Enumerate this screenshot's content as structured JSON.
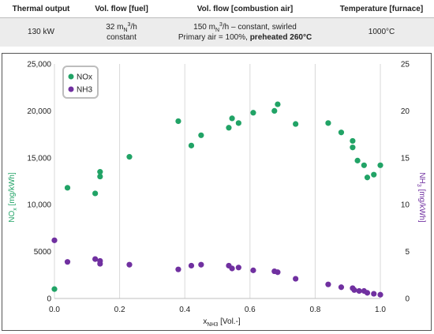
{
  "parameters": {
    "headers": [
      "Thermal output",
      "Vol. flow [fuel]",
      "Vol. flow [combustion air]",
      "Temperature [furnace]"
    ],
    "thermal_output": "130 kW",
    "fuel_flow_value": "32 m",
    "fuel_flow_unit_sub": "N",
    "fuel_flow_unit_sup": "3",
    "fuel_flow_unit_rest": "/h",
    "fuel_flow_note": "constant",
    "air_flow_value": "150 m",
    "air_flow_unit_sub": "N",
    "air_flow_unit_sup": "3",
    "air_flow_unit_rest": "/h – constant, swirled",
    "air_flow_note_prefix": "Primary air = 100%, ",
    "air_flow_note_bold": "preheated 260°C",
    "furnace_temperature": "1000°C"
  },
  "colors": {
    "nox": "#21a366",
    "nh3": "#7030a0",
    "grid": "#d9d9d9"
  },
  "chart_data": {
    "type": "scatter",
    "xlabel_main": "x",
    "xlabel_sub": "NH3",
    "xlabel_rest": " [Vol.-]",
    "ylabel_left_main": "NO",
    "ylabel_left_sub": "x",
    "ylabel_left_rest": " [mg/kWh]",
    "ylabel_right_main": "NH",
    "ylabel_right_sub": "3",
    "ylabel_right_rest": " [mg/kWh]",
    "xlim": [
      0,
      1
    ],
    "ylim_left": [
      0,
      25000
    ],
    "ylim_right": [
      0,
      25
    ],
    "x_ticks": [
      "0.0",
      "0.2",
      "0.4",
      "0.6",
      "0.8",
      "1.0"
    ],
    "x_tick_values": [
      0,
      0.2,
      0.4,
      0.6,
      0.8,
      1.0
    ],
    "y_left_ticks": [
      "0",
      "5000",
      "10,000",
      "15,000",
      "20,000",
      "25,000"
    ],
    "y_left_tick_values": [
      0,
      5000,
      10000,
      15000,
      20000,
      25000
    ],
    "y_right_ticks": [
      "0",
      "5",
      "10",
      "15",
      "20",
      "25"
    ],
    "y_right_tick_values": [
      0,
      5,
      10,
      15,
      20,
      25
    ],
    "grid": "vertical",
    "legend_placement": "top-left",
    "series": [
      {
        "name": "NOx",
        "axis": "left",
        "points": [
          [
            0.0,
            1000
          ],
          [
            0.04,
            11800
          ],
          [
            0.125,
            11200
          ],
          [
            0.14,
            13000
          ],
          [
            0.14,
            13500
          ],
          [
            0.23,
            15100
          ],
          [
            0.38,
            18900
          ],
          [
            0.42,
            16300
          ],
          [
            0.45,
            17400
          ],
          [
            0.535,
            18200
          ],
          [
            0.545,
            19200
          ],
          [
            0.565,
            18700
          ],
          [
            0.61,
            19800
          ],
          [
            0.675,
            20000
          ],
          [
            0.685,
            20700
          ],
          [
            0.74,
            18600
          ],
          [
            0.84,
            18700
          ],
          [
            0.88,
            17700
          ],
          [
            0.915,
            16800
          ],
          [
            0.915,
            16100
          ],
          [
            0.93,
            14700
          ],
          [
            0.95,
            14200
          ],
          [
            0.96,
            12900
          ],
          [
            0.98,
            13200
          ],
          [
            1.0,
            14200
          ]
        ]
      },
      {
        "name": "NH3",
        "axis": "right",
        "points": [
          [
            0.0,
            6.2
          ],
          [
            0.04,
            3.9
          ],
          [
            0.125,
            4.2
          ],
          [
            0.14,
            4.0
          ],
          [
            0.14,
            3.7
          ],
          [
            0.23,
            3.6
          ],
          [
            0.38,
            3.1
          ],
          [
            0.42,
            3.5
          ],
          [
            0.45,
            3.6
          ],
          [
            0.535,
            3.5
          ],
          [
            0.545,
            3.2
          ],
          [
            0.565,
            3.3
          ],
          [
            0.61,
            3.0
          ],
          [
            0.675,
            2.9
          ],
          [
            0.685,
            2.8
          ],
          [
            0.74,
            2.1
          ],
          [
            0.84,
            1.5
          ],
          [
            0.88,
            1.2
          ],
          [
            0.915,
            1.1
          ],
          [
            0.92,
            0.9
          ],
          [
            0.935,
            0.8
          ],
          [
            0.95,
            0.8
          ],
          [
            0.96,
            0.6
          ],
          [
            0.98,
            0.5
          ],
          [
            1.0,
            0.4
          ]
        ]
      }
    ]
  }
}
